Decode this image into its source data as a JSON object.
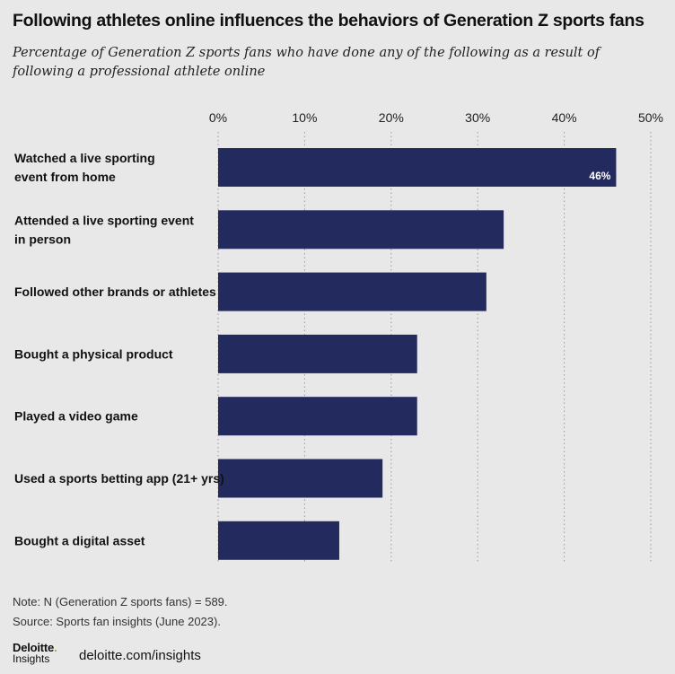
{
  "header": {
    "title": "Following athletes online influences the behaviors of Generation Z sports fans",
    "subtitle": "Percentage of Generation Z sports fans who have done any of the following as a result of following a professional athlete online"
  },
  "chart_data": {
    "type": "bar",
    "orientation": "horizontal",
    "categories": [
      [
        "Watched a live sporting",
        "event from home"
      ],
      [
        "Attended a live sporting event",
        "in person"
      ],
      [
        "Followed other brands or athletes"
      ],
      [
        "Bought a physical product"
      ],
      [
        "Played a video game"
      ],
      [
        "Used a sports betting app (21+ yrs)"
      ],
      [
        "Bought a digital asset"
      ]
    ],
    "values": [
      46,
      33,
      31,
      23,
      23,
      19,
      14
    ],
    "data_labels": [
      "46%",
      "",
      "",
      "",
      "",
      "",
      ""
    ],
    "xlim": [
      0,
      50
    ],
    "ticks": [
      0,
      10,
      20,
      30,
      40,
      50
    ],
    "tick_labels": [
      "0%",
      "10%",
      "20%",
      "30%",
      "40%",
      "50%"
    ],
    "grid": "vertical-dotted",
    "bar_color": "#232a5e",
    "grid_color": "#9a9a9a"
  },
  "footer": {
    "note": "Note: N (Generation Z sports fans) = 589.",
    "source": "Source: Sports fan insights (June 2023).",
    "logo_name": "Deloitte",
    "logo_dot": ".",
    "logo_sub": "Insights",
    "site": "deloitte.com/insights"
  }
}
